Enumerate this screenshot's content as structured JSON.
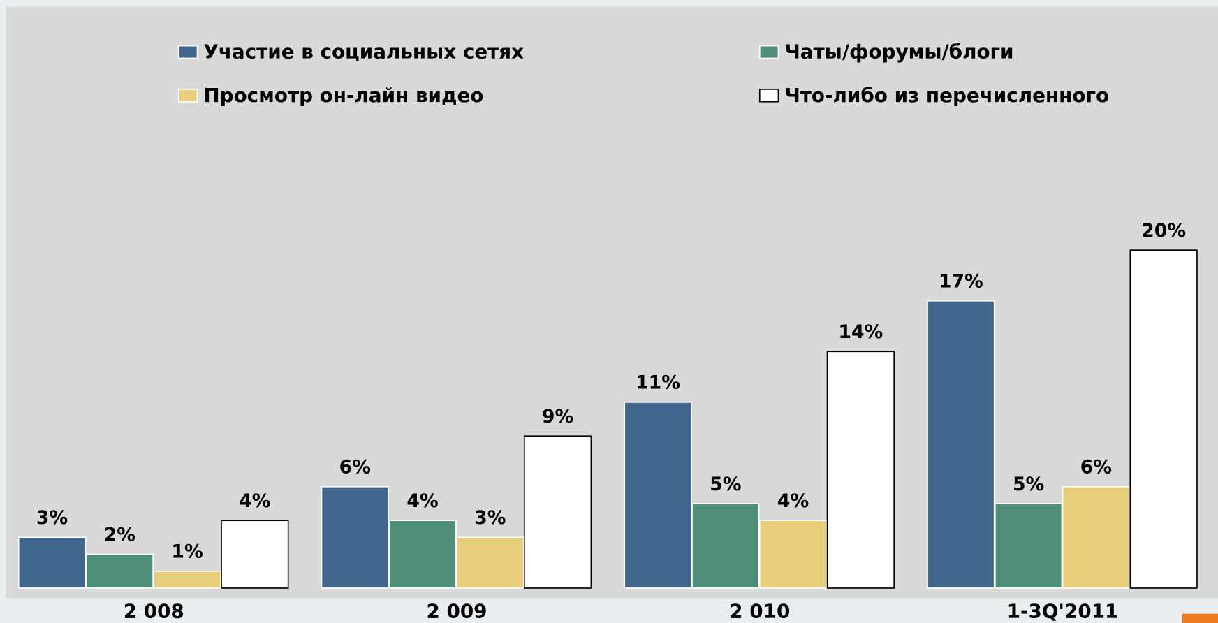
{
  "chart_data": {
    "type": "bar",
    "categories": [
      "2 008",
      "2 009",
      "2 010",
      "1-3Q'2011"
    ],
    "series": [
      {
        "name": "Участие в социальных сетях",
        "color": "#41678f",
        "values": [
          3,
          6,
          11,
          17
        ],
        "value_labels": [
          "3%",
          "6%",
          "11%",
          "17%"
        ]
      },
      {
        "name": "Чаты/форумы/блоги",
        "color": "#4f8f7a",
        "values": [
          2,
          4,
          5,
          5
        ],
        "value_labels": [
          "2%",
          "4%",
          "5%",
          "5%"
        ]
      },
      {
        "name": "Просмотр он-лайн видео",
        "color": "#e8cd7a",
        "values": [
          1,
          3,
          4,
          6
        ],
        "value_labels": [
          "1%",
          "3%",
          "4%",
          "6%"
        ]
      },
      {
        "name": "Что-либо из перечисленного",
        "color": "#ffffff",
        "values": [
          4,
          9,
          14,
          20
        ],
        "value_labels": [
          "4%",
          "9%",
          "14%",
          "20%"
        ]
      }
    ],
    "ylim": [
      0,
      25
    ]
  }
}
